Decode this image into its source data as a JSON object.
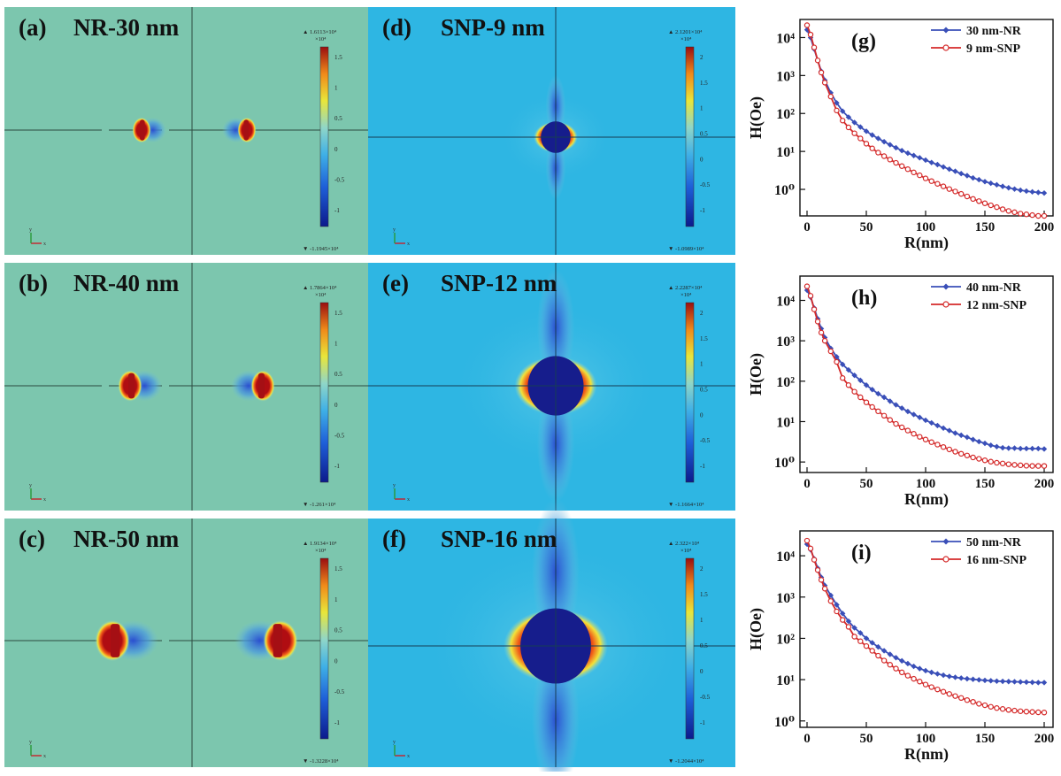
{
  "panels": [
    {
      "id": "a",
      "letter": "(a)",
      "title": "NR-30 nm",
      "kind": "NR",
      "cb_max": "▲ 1.6113×10⁴",
      "cb_min": "▼ -1.1945×10⁴",
      "cb_exp": "×10⁴",
      "cb_ticks": [
        "1.5",
        "1",
        "0.5",
        "0",
        "-0.5",
        "-1"
      ]
    },
    {
      "id": "d",
      "letter": "(d)",
      "title": "SNP-9 nm",
      "kind": "SNP",
      "cb_max": "▲ 2.1201×10⁴",
      "cb_min": "▼ -1.0989×10⁴",
      "cb_exp": "×10⁴",
      "cb_ticks": [
        "2",
        "1.5",
        "1",
        "0.5",
        "0",
        "-0.5",
        "-1"
      ]
    },
    {
      "id": "b",
      "letter": "(b)",
      "title": "NR-40 nm",
      "kind": "NR",
      "cb_max": "▲ 1.7864×10⁴",
      "cb_min": "▼ -1.261×10⁴",
      "cb_exp": "×10⁴",
      "cb_ticks": [
        "1.5",
        "1",
        "0.5",
        "0",
        "-0.5",
        "-1"
      ]
    },
    {
      "id": "e",
      "letter": "(e)",
      "title": "SNP-12 nm",
      "kind": "SNP",
      "cb_max": "▲ 2.2287×10⁴",
      "cb_min": "▼ -1.1664×10⁴",
      "cb_exp": "×10⁴",
      "cb_ticks": [
        "2",
        "1.5",
        "1",
        "0.5",
        "0",
        "-0.5",
        "-1"
      ]
    },
    {
      "id": "c",
      "letter": "(c)",
      "title": "NR-50 nm",
      "kind": "NR",
      "cb_max": "▲ 1.9134×10⁴",
      "cb_min": "▼ -1.3228×10⁴",
      "cb_exp": "×10⁴",
      "cb_ticks": [
        "1.5",
        "1",
        "0.5",
        "0",
        "-0.5",
        "-1"
      ]
    },
    {
      "id": "f",
      "letter": "(f)",
      "title": "SNP-16 nm",
      "kind": "SNP",
      "cb_max": "▲ 2.322×10⁴",
      "cb_min": "▼ -1.2044×10⁴",
      "cb_exp": "×10⁴",
      "cb_ticks": [
        "2",
        "1.5",
        "1",
        "0.5",
        "0",
        "-0.5",
        "-1"
      ]
    }
  ],
  "chart_data": [
    {
      "type": "line",
      "panel": "(g)",
      "xlabel": "R(nm)",
      "ylabel": "H(Oe)",
      "xlim": [
        0,
        200
      ],
      "ylim": [
        0.2,
        30000
      ],
      "yscale": "log",
      "xticks": [
        "0",
        "50",
        "100",
        "150",
        "200"
      ],
      "yticks": [
        "10⁰",
        "10¹",
        "10²",
        "10³",
        "10⁴"
      ],
      "legend_position": "top-right",
      "series": [
        {
          "name": "30 nm-NR",
          "color": "#3a4fb8",
          "marker": "diamond",
          "x": [
            0,
            3,
            6,
            9,
            12,
            15,
            20,
            25,
            30,
            35,
            40,
            45,
            50,
            55,
            60,
            65,
            70,
            75,
            80,
            85,
            90,
            95,
            100,
            105,
            110,
            115,
            120,
            125,
            130,
            135,
            140,
            145,
            150,
            155,
            160,
            165,
            170,
            175,
            180,
            185,
            190,
            195,
            200
          ],
          "y": [
            16113,
            10000,
            5000,
            2500,
            1300,
            750,
            350,
            190,
            115,
            80,
            58,
            44,
            34,
            27,
            22,
            18,
            15,
            12.5,
            10.5,
            9,
            7.8,
            6.8,
            5.9,
            5.1,
            4.5,
            3.9,
            3.4,
            3,
            2.6,
            2.3,
            2,
            1.8,
            1.6,
            1.45,
            1.32,
            1.2,
            1.1,
            1.02,
            0.95,
            0.9,
            0.86,
            0.83,
            0.8
          ]
        },
        {
          "name": "9 nm-SNP",
          "color": "#d42a2a",
          "marker": "circle",
          "x": [
            0,
            3,
            6,
            9,
            12,
            15,
            20,
            25,
            30,
            35,
            40,
            45,
            50,
            55,
            60,
            65,
            70,
            75,
            80,
            85,
            90,
            95,
            100,
            105,
            110,
            115,
            120,
            125,
            130,
            135,
            140,
            145,
            150,
            155,
            160,
            165,
            170,
            175,
            180,
            185,
            190,
            195,
            200
          ],
          "y": [
            21201,
            12000,
            5500,
            2500,
            1200,
            650,
            280,
            120,
            65,
            43,
            30,
            22,
            16,
            12,
            9.3,
            7.5,
            6.1,
            5,
            4.1,
            3.4,
            2.8,
            2.35,
            1.95,
            1.65,
            1.4,
            1.2,
            1.02,
            0.88,
            0.76,
            0.65,
            0.56,
            0.49,
            0.43,
            0.38,
            0.34,
            0.3,
            0.27,
            0.25,
            0.23,
            0.22,
            0.21,
            0.2,
            0.2
          ]
        }
      ]
    },
    {
      "type": "line",
      "panel": "(h)",
      "xlabel": "R(nm)",
      "ylabel": "H(Oe)",
      "xlim": [
        0,
        200
      ],
      "ylim": [
        0.55,
        40000
      ],
      "yscale": "log",
      "xticks": [
        "0",
        "50",
        "100",
        "150",
        "200"
      ],
      "yticks": [
        "10⁰",
        "10¹",
        "10²",
        "10³",
        "10⁴"
      ],
      "legend_position": "top-right",
      "series": [
        {
          "name": "40 nm-NR",
          "color": "#3a4fb8",
          "marker": "diamond",
          "x": [
            0,
            3,
            6,
            9,
            12,
            15,
            20,
            25,
            30,
            35,
            40,
            45,
            50,
            55,
            60,
            65,
            70,
            75,
            80,
            85,
            90,
            95,
            100,
            105,
            110,
            115,
            120,
            125,
            130,
            135,
            140,
            145,
            150,
            155,
            160,
            165,
            170,
            175,
            180,
            185,
            190,
            195,
            200
          ],
          "y": [
            17864,
            12000,
            6500,
            3500,
            2000,
            1200,
            650,
            400,
            260,
            190,
            140,
            105,
            80,
            62,
            49,
            40,
            32,
            26,
            21.5,
            17.8,
            15,
            12.7,
            10.8,
            9.3,
            8,
            6.9,
            6,
            5.2,
            4.6,
            4.1,
            3.6,
            3.2,
            2.9,
            2.6,
            2.4,
            2.25,
            2.2,
            2.2,
            2.15,
            2.15,
            2.15,
            2.15,
            2.1
          ]
        },
        {
          "name": "12 nm-SNP",
          "color": "#d42a2a",
          "marker": "circle",
          "x": [
            0,
            3,
            6,
            9,
            12,
            15,
            20,
            25,
            30,
            35,
            40,
            45,
            50,
            55,
            60,
            65,
            70,
            75,
            80,
            85,
            90,
            95,
            100,
            105,
            110,
            115,
            120,
            125,
            130,
            135,
            140,
            145,
            150,
            155,
            160,
            165,
            170,
            175,
            180,
            185,
            190,
            195,
            200
          ],
          "y": [
            22287,
            13000,
            6000,
            3000,
            1600,
            1000,
            550,
            300,
            120,
            80,
            55,
            40,
            30,
            23,
            18,
            14,
            11,
            8.8,
            7.2,
            6,
            5,
            4.2,
            3.6,
            3.1,
            2.7,
            2.35,
            2.05,
            1.8,
            1.6,
            1.45,
            1.3,
            1.2,
            1.1,
            1.02,
            0.96,
            0.92,
            0.88,
            0.85,
            0.83,
            0.81,
            0.8,
            0.8,
            0.8
          ]
        }
      ]
    },
    {
      "type": "line",
      "panel": "(i)",
      "xlabel": "R(nm)",
      "ylabel": "H(Oe)",
      "xlim": [
        0,
        200
      ],
      "ylim": [
        0.7,
        40000
      ],
      "yscale": "log",
      "xticks": [
        "0",
        "50",
        "100",
        "150",
        "200"
      ],
      "yticks": [
        "10⁰",
        "10¹",
        "10²",
        "10³",
        "10⁴"
      ],
      "legend_position": "top-right",
      "series": [
        {
          "name": "50 nm-NR",
          "color": "#3a4fb8",
          "marker": "diamond",
          "x": [
            0,
            3,
            6,
            9,
            12,
            15,
            20,
            25,
            30,
            35,
            40,
            45,
            50,
            55,
            60,
            65,
            70,
            75,
            80,
            85,
            90,
            95,
            100,
            105,
            110,
            115,
            120,
            125,
            130,
            135,
            140,
            145,
            150,
            155,
            160,
            165,
            170,
            175,
            180,
            185,
            190,
            195,
            200
          ],
          "y": [
            19134,
            14000,
            8500,
            5000,
            3000,
            1900,
            1100,
            650,
            400,
            260,
            180,
            135,
            100,
            78,
            62,
            50,
            41,
            34,
            28.5,
            24.5,
            21,
            18.5,
            16.5,
            15,
            13.8,
            12.8,
            12,
            11.4,
            10.9,
            10.5,
            10.2,
            9.9,
            9.6,
            9.4,
            9.2,
            9.1,
            9,
            8.9,
            8.8,
            8.7,
            8.6,
            8.5,
            8.5
          ]
        },
        {
          "name": "16 nm-SNP",
          "color": "#d42a2a",
          "marker": "circle",
          "x": [
            0,
            3,
            6,
            9,
            12,
            15,
            20,
            25,
            30,
            35,
            40,
            45,
            50,
            55,
            60,
            65,
            70,
            75,
            80,
            85,
            90,
            95,
            100,
            105,
            110,
            115,
            120,
            125,
            130,
            135,
            140,
            145,
            150,
            155,
            160,
            165,
            170,
            175,
            180,
            185,
            190,
            195,
            200
          ],
          "y": [
            23220,
            15000,
            8000,
            4500,
            2600,
            1600,
            800,
            450,
            280,
            190,
            110,
            85,
            65,
            50,
            38,
            29,
            23,
            18.5,
            15,
            12.5,
            10.5,
            9,
            7.6,
            6.6,
            5.8,
            5.1,
            4.5,
            4,
            3.6,
            3.2,
            2.9,
            2.6,
            2.4,
            2.2,
            2.05,
            1.95,
            1.85,
            1.78,
            1.72,
            1.68,
            1.65,
            1.62,
            1.6
          ]
        }
      ]
    }
  ]
}
